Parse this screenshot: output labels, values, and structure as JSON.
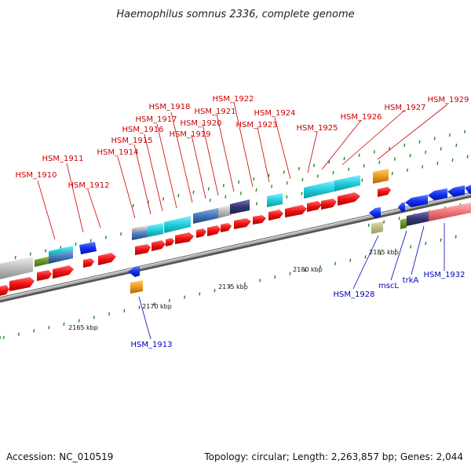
{
  "title": "Haemophilus somnus 2336, complete genome",
  "footer": {
    "accession": "Accession: NC_010519",
    "stats": "Topology: circular; Length: 2,263,857 bp; Genes: 2,044"
  },
  "scale_labels": [
    "2165 kbp",
    "2170 kbp",
    "2175 kbp",
    "2180 kbp",
    "2185 kbp"
  ],
  "gene_labels_top": [
    "HSM_1910",
    "HSM_1911",
    "HSM_1912",
    "HSM_1914",
    "HSM_1915",
    "HSM_1916",
    "HSM_1917",
    "HSM_1918",
    "HSM_1919",
    "HSM_1920",
    "HSM_1921",
    "HSM_1922",
    "HSM_1923",
    "HSM_1924",
    "HSM_1925",
    "HSM_1926",
    "HSM_1927",
    "HSM_1929"
  ],
  "gene_labels_bottom": [
    "HSM_1913",
    "HSM_1928",
    "mscL",
    "trkA",
    "HSM_1932"
  ],
  "colors": {
    "forward_cds": "#ee1111",
    "reverse_cds": "#1133ee",
    "backbone": "#888888",
    "label_forward": "#cc0000",
    "label_reverse": "#0000bb",
    "cog_cyan": "#22ccdd",
    "cog_steel": "#4477bb",
    "cog_navy": "#333377",
    "cog_gray": "#bbbbbb",
    "cog_orange": "#ee9922",
    "cog_olive": "#558822",
    "cog_khaki": "#bbbb77",
    "cog_pink": "#ee7777"
  }
}
